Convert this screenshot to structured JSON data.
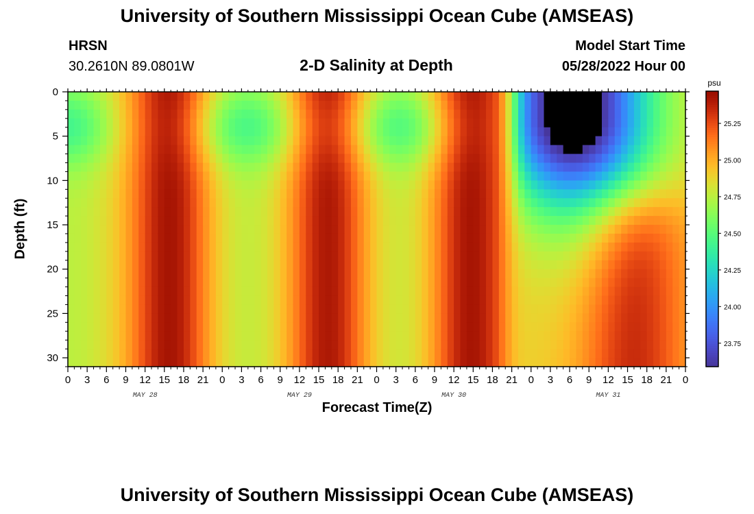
{
  "header": {
    "main_title": "University of Southern Mississippi Ocean Cube (AMSEAS)",
    "station": "HRSN",
    "coords": "30.2610N  89.0801W",
    "subtitle": "2-D Salinity at Depth",
    "start_label": "Model Start Time",
    "start_value": "05/28/2022 Hour 00"
  },
  "footer": {
    "bottom_title": "University of Southern Mississippi Ocean Cube (AMSEAS)"
  },
  "chart_data": {
    "type": "heatmap",
    "title": "2-D Salinity at Depth",
    "xlabel": "Forecast Time(Z)",
    "ylabel": "Depth (ft)",
    "x_tick_labels": [
      "0",
      "3",
      "6",
      "9",
      "12",
      "15",
      "18",
      "21",
      "0",
      "3",
      "6",
      "9",
      "12",
      "15",
      "18",
      "21",
      "0",
      "3",
      "6",
      "9",
      "12",
      "15",
      "18",
      "21",
      "0",
      "3",
      "6",
      "9",
      "12",
      "15",
      "18",
      "21",
      "0"
    ],
    "x_range_hours": [
      0,
      96
    ],
    "day_labels": [
      "MAY 28",
      "MAY 29",
      "MAY 30",
      "MAY 31"
    ],
    "y_ticks": [
      0,
      5,
      10,
      15,
      20,
      25,
      30
    ],
    "y_range": [
      0,
      31
    ],
    "y_inverted": true,
    "colorbar": {
      "unit": "psu",
      "min": 23.59,
      "max": 25.47,
      "ticks": [
        "25.25",
        "25.00",
        "24.75",
        "24.50",
        "24.25",
        "24.00",
        "23.75"
      ],
      "colormap": "turbo"
    },
    "description_values_psu": {
      "high_bands_hours": [
        [
          12,
          20
        ],
        [
          36,
          44
        ],
        [
          58,
          67
        ]
      ],
      "low_core_hours": [
        72,
        90
      ],
      "low_core_depth_ft": [
        0,
        10
      ],
      "low_core_min": 23.6
    }
  }
}
